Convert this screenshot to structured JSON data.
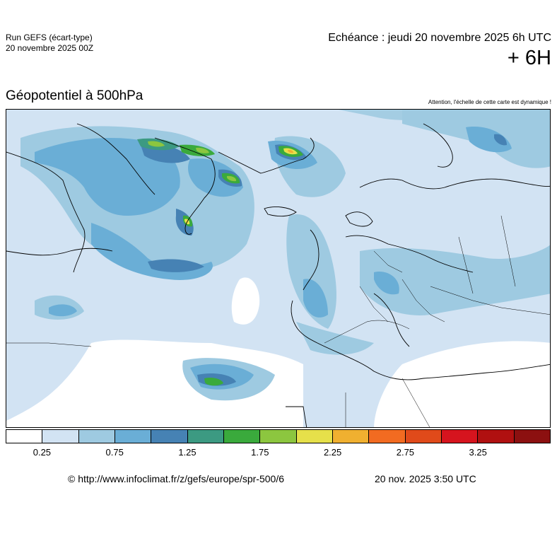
{
  "header": {
    "run_line1": "Run GEFS (écart-type)",
    "run_line2": "20 novembre 2025 00Z",
    "echeance": "Echéance : jeudi 20 novembre 2025 6h UTC",
    "lead_time": "+ 6H"
  },
  "map": {
    "title": "Géopotentiel à 500hPa",
    "warning": "Attention, l'échelle de cette carte est dynamique !"
  },
  "legend": {
    "colors": [
      "#ffffff",
      "#d2e3f3",
      "#9ecae1",
      "#6aaed6",
      "#4682b4",
      "#3c9a82",
      "#3aaa3c",
      "#8cc63f",
      "#e6e04a",
      "#f0b030",
      "#f26b21",
      "#e04a1a",
      "#d6141e",
      "#b01010",
      "#8c1010"
    ],
    "tick_labels": [
      "0.25",
      "0.75",
      "1.25",
      "1.75",
      "2.25",
      "2.75",
      "3.25"
    ]
  },
  "footer": {
    "url": "© http://www.infoclimat.fr/z/gefs/europe/spr-500/6",
    "date": "20 nov. 2025  3:50 UTC"
  }
}
